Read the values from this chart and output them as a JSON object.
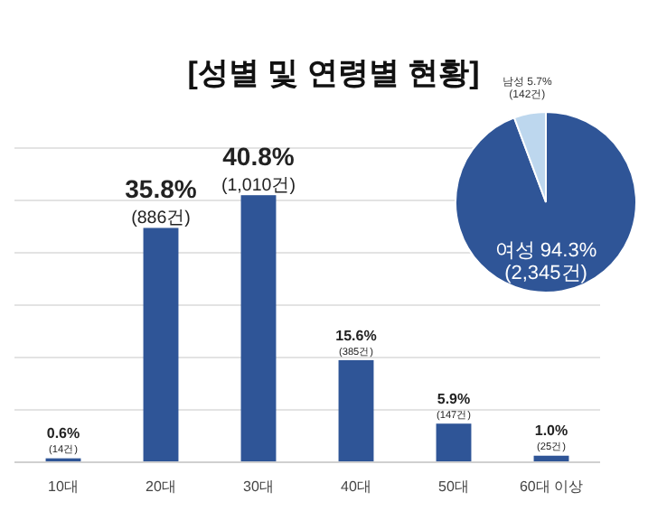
{
  "chart_data": [
    {
      "type": "bar",
      "title": "[성별 및 연령별 현황]",
      "categories": [
        "10대",
        "20대",
        "30대",
        "40대",
        "50대",
        "60대 이상"
      ],
      "values": [
        0.6,
        35.8,
        40.8,
        15.6,
        5.9,
        1.0
      ],
      "color": "#2f5597",
      "ylim": [
        0,
        48
      ],
      "yticks": [
        {
          "value": 0,
          "label": null
        },
        {
          "value": 8,
          "label": null
        },
        {
          "value": 16,
          "label": null
        },
        {
          "value": 24,
          "label": null
        },
        {
          "value": 32,
          "label": null
        },
        {
          "value": 40,
          "label": null
        },
        {
          "value": 48,
          "label": null
        }
      ],
      "tick_labels": "x",
      "grid": "y",
      "value_labels": [
        "0.6%\n(14건)",
        "35.8%\n(886건)",
        "40.8%\n(1,010건)",
        "15.6%\n(385건)",
        "5.9%\n(147건)",
        "1.0%\n(25건)"
      ]
    },
    {
      "type": "pie",
      "categories": [
        "여성",
        "남성"
      ],
      "values": [
        94.3,
        5.7
      ],
      "colors": [
        "#2f5597",
        "#bdd7ee"
      ],
      "value_labels": [
        "94.3%\n(2,345건)",
        "5.7%\n(142건)"
      ]
    }
  ]
}
